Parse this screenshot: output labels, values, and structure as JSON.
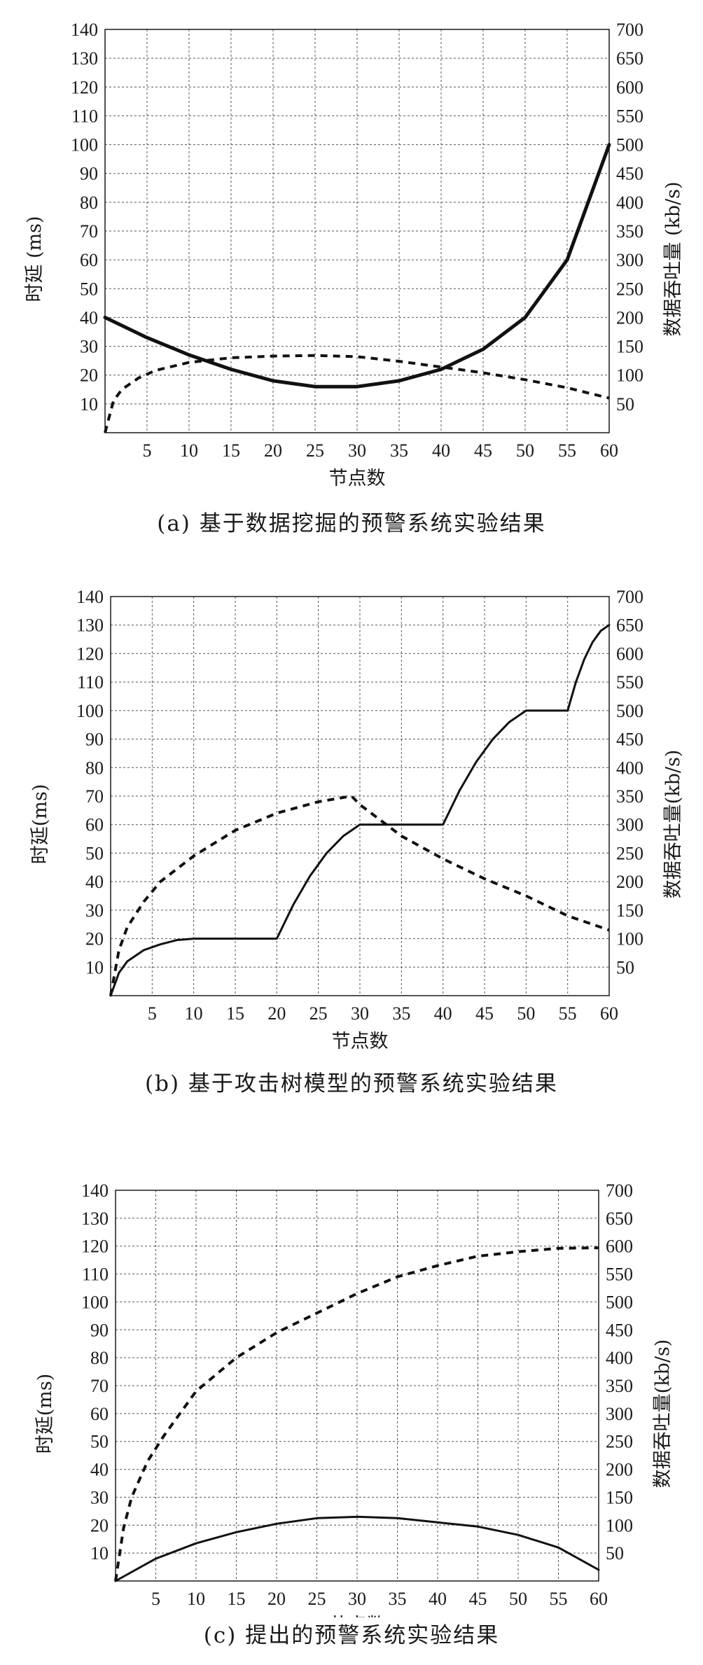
{
  "chart_data": [
    {
      "type": "line",
      "caption": "(a) 基于数据挖掘的预警系统实验结果",
      "xlabel": "节点数",
      "ylabel_left": "时延 (ms)",
      "ylabel_right": "数据吞吐量 (kb/s)",
      "xlim": [
        0,
        60
      ],
      "ylim_left": [
        0,
        140
      ],
      "ylim_right": [
        0,
        700
      ],
      "x_ticks": [
        5,
        10,
        15,
        20,
        25,
        30,
        35,
        40,
        45,
        50,
        55,
        60
      ],
      "y_ticks_left": [
        10,
        20,
        30,
        40,
        50,
        60,
        70,
        80,
        90,
        100,
        110,
        120,
        130,
        140
      ],
      "y_ticks_right": [
        50,
        100,
        150,
        200,
        250,
        300,
        350,
        400,
        450,
        500,
        550,
        600,
        650,
        700
      ],
      "grid": true,
      "series": [
        {
          "axis": "left",
          "style": "solid-thick",
          "x": [
            0,
            5,
            10,
            15,
            20,
            25,
            30,
            35,
            40,
            45,
            50,
            55,
            60
          ],
          "values": [
            40,
            33,
            27,
            22,
            18,
            16,
            16,
            18,
            22,
            29,
            40,
            60,
            100
          ]
        },
        {
          "axis": "right",
          "style": "dashed",
          "x": [
            0,
            1,
            2,
            4,
            6,
            10,
            15,
            20,
            25,
            30,
            35,
            40,
            45,
            50,
            55,
            60
          ],
          "values": [
            0,
            55,
            75,
            95,
            108,
            122,
            130,
            133,
            134,
            132,
            124,
            114,
            104,
            92,
            78,
            60
          ]
        }
      ]
    },
    {
      "type": "line",
      "caption": "(b) 基于攻击树模型的预警系统实验结果",
      "xlabel": "节点数",
      "ylabel_left": "时延(ms)",
      "ylabel_right": "数据吞吐量(kb/s)",
      "xlim": [
        0,
        60
      ],
      "ylim_left": [
        0,
        140
      ],
      "ylim_right": [
        0,
        700
      ],
      "x_ticks": [
        5,
        10,
        15,
        20,
        25,
        30,
        35,
        40,
        45,
        50,
        55,
        60
      ],
      "y_ticks_left": [
        10,
        20,
        30,
        40,
        50,
        60,
        70,
        80,
        90,
        100,
        110,
        120,
        130,
        140
      ],
      "y_ticks_right": [
        50,
        100,
        150,
        200,
        250,
        300,
        350,
        400,
        450,
        500,
        550,
        600,
        650,
        700
      ],
      "grid": true,
      "series": [
        {
          "axis": "left",
          "style": "solid",
          "x": [
            0,
            1,
            2,
            4,
            6,
            8,
            10,
            20,
            22,
            24,
            26,
            28,
            30,
            40,
            42,
            44,
            46,
            48,
            50,
            55,
            56,
            57,
            58,
            59,
            60
          ],
          "values": [
            0,
            8,
            12,
            16,
            18,
            19.5,
            20,
            20,
            32,
            42,
            50,
            56,
            60,
            60,
            72,
            82,
            90,
            96,
            100,
            100,
            110,
            118,
            124,
            128,
            130
          ]
        },
        {
          "axis": "right",
          "style": "dashed",
          "x": [
            0,
            1,
            2,
            4,
            6,
            10,
            15,
            20,
            25,
            29,
            30,
            35,
            40,
            45,
            50,
            55,
            60
          ],
          "values": [
            0,
            80,
            120,
            165,
            200,
            245,
            290,
            320,
            340,
            350,
            335,
            280,
            240,
            205,
            175,
            140,
            115
          ]
        }
      ]
    },
    {
      "type": "line",
      "caption": "(c) 提出的预警系统实验结果",
      "xlabel": "节点数",
      "ylabel_left": "时延(ms)",
      "ylabel_right": "数据吞吐量(kb/s)",
      "xlim": [
        0,
        60
      ],
      "ylim_left": [
        0,
        140
      ],
      "ylim_right": [
        0,
        700
      ],
      "x_ticks": [
        5,
        10,
        15,
        20,
        25,
        30,
        35,
        40,
        45,
        50,
        55,
        60
      ],
      "y_ticks_left": [
        10,
        20,
        30,
        40,
        50,
        60,
        70,
        80,
        90,
        100,
        110,
        120,
        130,
        140
      ],
      "y_ticks_right": [
        50,
        100,
        150,
        200,
        250,
        300,
        350,
        400,
        450,
        500,
        550,
        600,
        650,
        700
      ],
      "grid": true,
      "series": [
        {
          "axis": "left",
          "style": "solid",
          "x": [
            0,
            5,
            10,
            15,
            20,
            25,
            30,
            35,
            40,
            45,
            50,
            55,
            60
          ],
          "values": [
            0,
            8,
            13.5,
            17.5,
            20.5,
            22.5,
            23,
            22.5,
            21,
            19.5,
            16.5,
            12,
            4
          ]
        },
        {
          "axis": "right",
          "style": "dashed",
          "x": [
            0,
            1,
            2,
            4,
            6,
            10,
            15,
            20,
            25,
            30,
            35,
            40,
            45,
            50,
            55,
            60
          ],
          "values": [
            0,
            95,
            150,
            215,
            260,
            340,
            400,
            445,
            480,
            515,
            545,
            565,
            582,
            590,
            596,
            597
          ]
        }
      ]
    }
  ]
}
